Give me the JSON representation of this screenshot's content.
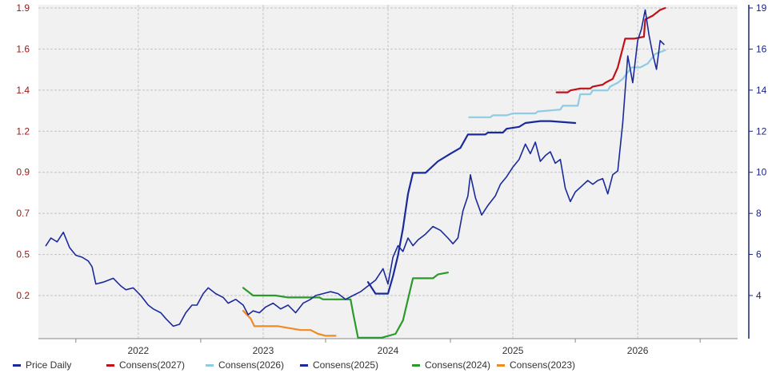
{
  "chart_data": {
    "type": "line",
    "title": "",
    "xlabel": "",
    "ylabel_left": "",
    "ylabel_right": "",
    "left_axis": {
      "ticks": [
        "0.2",
        "0.5",
        "0.7",
        "0.9",
        "1.2",
        "1.4",
        "1.6",
        "1.9"
      ],
      "color": "#a01818"
    },
    "right_axis": {
      "ticks": [
        "4",
        "6",
        "8",
        "10",
        "12",
        "14",
        "16",
        "19"
      ],
      "ylim": [
        2,
        19
      ],
      "color": "#1a237e"
    },
    "x_ticks": [
      "2022",
      "2023",
      "2024",
      "2025",
      "2026"
    ],
    "xlim": [
      2021.2,
      2026.8
    ],
    "grid": true,
    "legend_position": "bottom",
    "series": [
      {
        "name": "Price Daily",
        "axis": "right",
        "color": "#1a2a9c",
        "x": [
          2021.26,
          2021.3,
          2021.35,
          2021.4,
          2021.45,
          2021.5,
          2021.55,
          2021.6,
          2021.63,
          2021.66,
          2021.72,
          2021.8,
          2021.86,
          2021.9,
          2021.96,
          2022.02,
          2022.08,
          2022.12,
          2022.18,
          2022.22,
          2022.28,
          2022.33,
          2022.38,
          2022.43,
          2022.47,
          2022.52,
          2022.56,
          2022.62,
          2022.68,
          2022.72,
          2022.78,
          2022.84,
          2022.88,
          2022.92,
          2022.97,
          2023.02,
          2023.08,
          2023.14,
          2023.2,
          2023.26,
          2023.32,
          2023.38,
          2023.42,
          2023.48,
          2023.54,
          2023.6,
          2023.66,
          2023.72,
          2023.78,
          2023.84,
          2023.9,
          2023.96,
          2024.0,
          2024.04,
          2024.08,
          2024.12,
          2024.16,
          2024.2,
          2024.24,
          2024.3,
          2024.36,
          2024.42,
          2024.48,
          2024.52,
          2024.56,
          2024.6,
          2024.64,
          2024.66,
          2024.7,
          2024.75,
          2024.8,
          2024.86,
          2024.9,
          2024.95,
          2025.0,
          2025.05,
          2025.1,
          2025.14,
          2025.18,
          2025.22,
          2025.26,
          2025.3,
          2025.34,
          2025.38,
          2025.42,
          2025.46,
          2025.5,
          2025.55,
          2025.6,
          2025.64,
          2025.68,
          2025.72,
          2025.76,
          2025.8,
          2025.84,
          2025.88,
          2025.92,
          2025.96,
          2026.0,
          2026.03,
          2026.06,
          2026.09,
          2026.12,
          2026.15,
          2026.18,
          2026.21
        ],
        "y": [
          6.6,
          7.0,
          6.8,
          7.3,
          6.5,
          6.1,
          6.0,
          5.8,
          5.5,
          4.6,
          4.7,
          4.9,
          4.5,
          4.3,
          4.4,
          4.0,
          3.5,
          3.3,
          3.1,
          2.8,
          2.4,
          2.5,
          3.1,
          3.5,
          3.5,
          4.1,
          4.4,
          4.1,
          3.9,
          3.6,
          3.8,
          3.5,
          3.0,
          3.2,
          3.1,
          3.4,
          3.6,
          3.3,
          3.5,
          3.1,
          3.6,
          3.8,
          4.0,
          4.1,
          4.2,
          4.1,
          3.8,
          4.0,
          4.2,
          4.5,
          4.8,
          5.4,
          4.6,
          6.0,
          6.6,
          6.3,
          7.0,
          6.6,
          6.9,
          7.2,
          7.6,
          7.4,
          7.0,
          6.7,
          7.0,
          8.4,
          9.2,
          10.3,
          9.1,
          8.2,
          8.7,
          9.2,
          9.8,
          10.2,
          10.7,
          11.1,
          11.9,
          11.4,
          12.0,
          11.0,
          11.3,
          11.5,
          10.9,
          11.1,
          9.6,
          8.9,
          9.4,
          9.7,
          10.0,
          9.8,
          10.0,
          10.1,
          9.3,
          10.3,
          10.5,
          13.0,
          16.5,
          15.1,
          17.3,
          17.9,
          18.9,
          17.6,
          16.6,
          15.8,
          17.3,
          17.1
        ]
      },
      {
        "name": "Consens(2027)",
        "axis": "right",
        "color": "#c0101a",
        "x": [
          2025.35,
          2025.44,
          2025.46,
          2025.54,
          2025.62,
          2025.64,
          2025.72,
          2025.74,
          2025.8,
          2025.84,
          2025.9,
          2025.97,
          2026.05,
          2026.06,
          2026.12,
          2026.18,
          2026.22
        ],
        "y": [
          14.6,
          14.6,
          14.7,
          14.8,
          14.8,
          14.9,
          15.0,
          15.1,
          15.3,
          15.9,
          17.4,
          17.4,
          17.5,
          18.4,
          18.6,
          18.9,
          19.0
        ]
      },
      {
        "name": "Consens(2026)",
        "axis": "right",
        "color": "#8dcce3",
        "x": [
          2024.65,
          2024.82,
          2024.84,
          2024.95,
          2025.0,
          2025.18,
          2025.2,
          2025.38,
          2025.4,
          2025.52,
          2025.54,
          2025.62,
          2025.64,
          2025.76,
          2025.78,
          2025.84,
          2025.88,
          2025.95,
          2026.02,
          2026.08,
          2026.14,
          2026.22
        ],
        "y": [
          13.3,
          13.3,
          13.4,
          13.4,
          13.5,
          13.5,
          13.6,
          13.7,
          13.9,
          13.9,
          14.5,
          14.5,
          14.7,
          14.7,
          14.9,
          15.1,
          15.3,
          15.9,
          15.9,
          16.1,
          16.6,
          16.8
        ]
      },
      {
        "name": "Consens(2025)",
        "axis": "right",
        "color": "#1a2a9c",
        "x": [
          2023.84,
          2023.9,
          2024.0,
          2024.04,
          2024.08,
          2024.12,
          2024.16,
          2024.2,
          2024.3,
          2024.4,
          2024.5,
          2024.58,
          2024.64,
          2024.78,
          2024.8,
          2024.92,
          2024.95,
          2025.05,
          2025.1,
          2025.22,
          2025.3,
          2025.5
        ],
        "y": [
          4.7,
          4.1,
          4.1,
          5.0,
          6.1,
          7.5,
          9.3,
          10.4,
          10.4,
          11.0,
          11.4,
          11.7,
          12.4,
          12.4,
          12.5,
          12.5,
          12.7,
          12.8,
          13.0,
          13.1,
          13.1,
          13.0
        ]
      },
      {
        "name": "Consens(2024)",
        "axis": "right",
        "color": "#2a9a2a",
        "x": [
          2022.84,
          2022.92,
          2023.1,
          2023.2,
          2023.45,
          2023.48,
          2023.7,
          2023.72,
          2023.76,
          2023.8,
          2023.95,
          2024.06,
          2024.12,
          2024.2,
          2024.22,
          2024.36,
          2024.4,
          2024.48
        ],
        "y": [
          4.4,
          4.0,
          4.0,
          3.9,
          3.9,
          3.8,
          3.8,
          3.1,
          1.8,
          1.8,
          1.8,
          2.0,
          2.7,
          4.9,
          4.9,
          4.9,
          5.1,
          5.2
        ]
      },
      {
        "name": "Consens(2023)",
        "axis": "right",
        "color": "#f08a22",
        "x": [
          2022.84,
          2022.9,
          2022.93,
          2023.08,
          2023.12,
          2023.3,
          2023.38,
          2023.44,
          2023.5,
          2023.58
        ],
        "y": [
          3.2,
          2.8,
          2.4,
          2.4,
          2.4,
          2.2,
          2.2,
          2.0,
          1.9,
          1.9
        ]
      }
    ]
  }
}
